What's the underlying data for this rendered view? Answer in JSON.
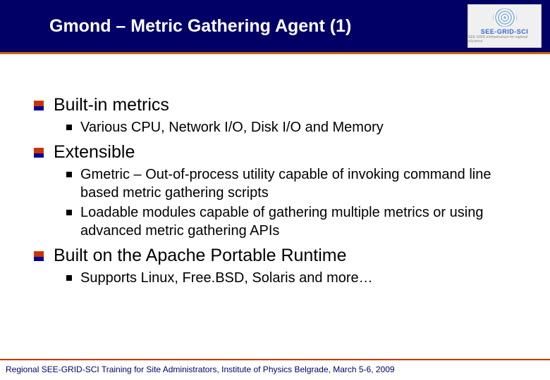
{
  "header": {
    "title": "Gmond – Metric Gathering Agent (1)",
    "bg_color": "#000066",
    "title_color": "#ffffff",
    "accent_line_color": "#cc6600"
  },
  "logo": {
    "text": "SEE-GRID-SCI",
    "subtext": "SEE-GRID eInfrastructure for regional eScience"
  },
  "content": {
    "items": [
      {
        "text": "Built-in metrics",
        "sub": [
          "Various CPU, Network I/O, Disk I/O and Memory"
        ]
      },
      {
        "text": "Extensible",
        "sub": [
          "Gmetric – Out-of-process utility capable of invoking command line based metric gathering scripts",
          "Loadable modules capable of gathering multiple metrics or using advanced metric gathering APIs"
        ]
      },
      {
        "text": "Built on the Apache Portable Runtime",
        "sub": [
          "Supports Linux, Free.BSD, Solaris and more…"
        ]
      }
    ]
  },
  "footer": {
    "text": "Regional SEE-GRID-SCI Training for Site Administrators, Institute of Physics Belgrade, March 5-6, 2009",
    "line_color": "#cc3300",
    "text_color": "#000066"
  },
  "styling": {
    "l1_fontsize": 25,
    "l2_fontsize": 20,
    "bullet_l1_top_color": "#cc3300",
    "bullet_l1_bottom_color": "#000099",
    "bullet_l2_color": "#000000"
  }
}
